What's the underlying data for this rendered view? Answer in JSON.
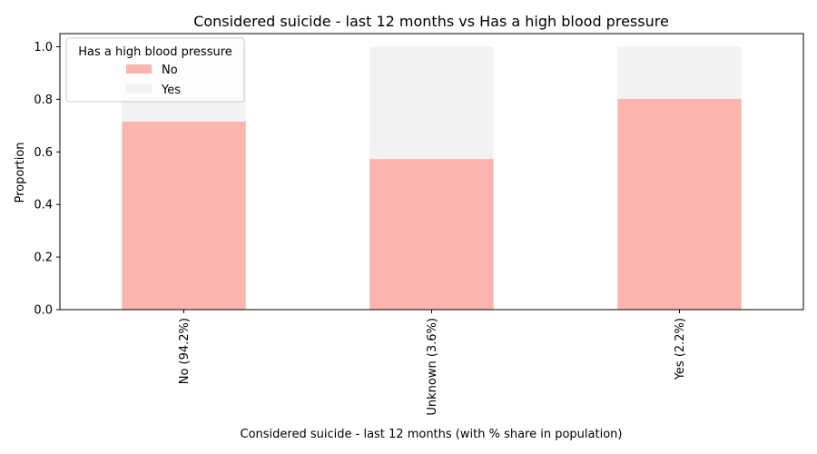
{
  "chart_data": {
    "type": "bar",
    "stacked": true,
    "title": "Considered suicide - last 12 months vs Has a high blood pressure",
    "xlabel": "Considered suicide - last 12 months (with % share in population)",
    "ylabel": "Proportion",
    "categories": [
      "No (94.2%)",
      "Unknown (3.6%)",
      "Yes (2.2%)"
    ],
    "ylim": [
      0,
      1.05
    ],
    "yticks": [
      "0.0",
      "0.2",
      "0.4",
      "0.6",
      "0.8",
      "1.0"
    ],
    "legend": {
      "title": "Has a high blood pressure",
      "position": "top-left"
    },
    "series": [
      {
        "name": "No",
        "color": "#fbb4ae",
        "values": [
          0.715,
          0.573,
          0.802
        ]
      },
      {
        "name": "Yes",
        "color": "#f2f2f2",
        "values": [
          0.285,
          0.427,
          0.198
        ]
      }
    ]
  }
}
